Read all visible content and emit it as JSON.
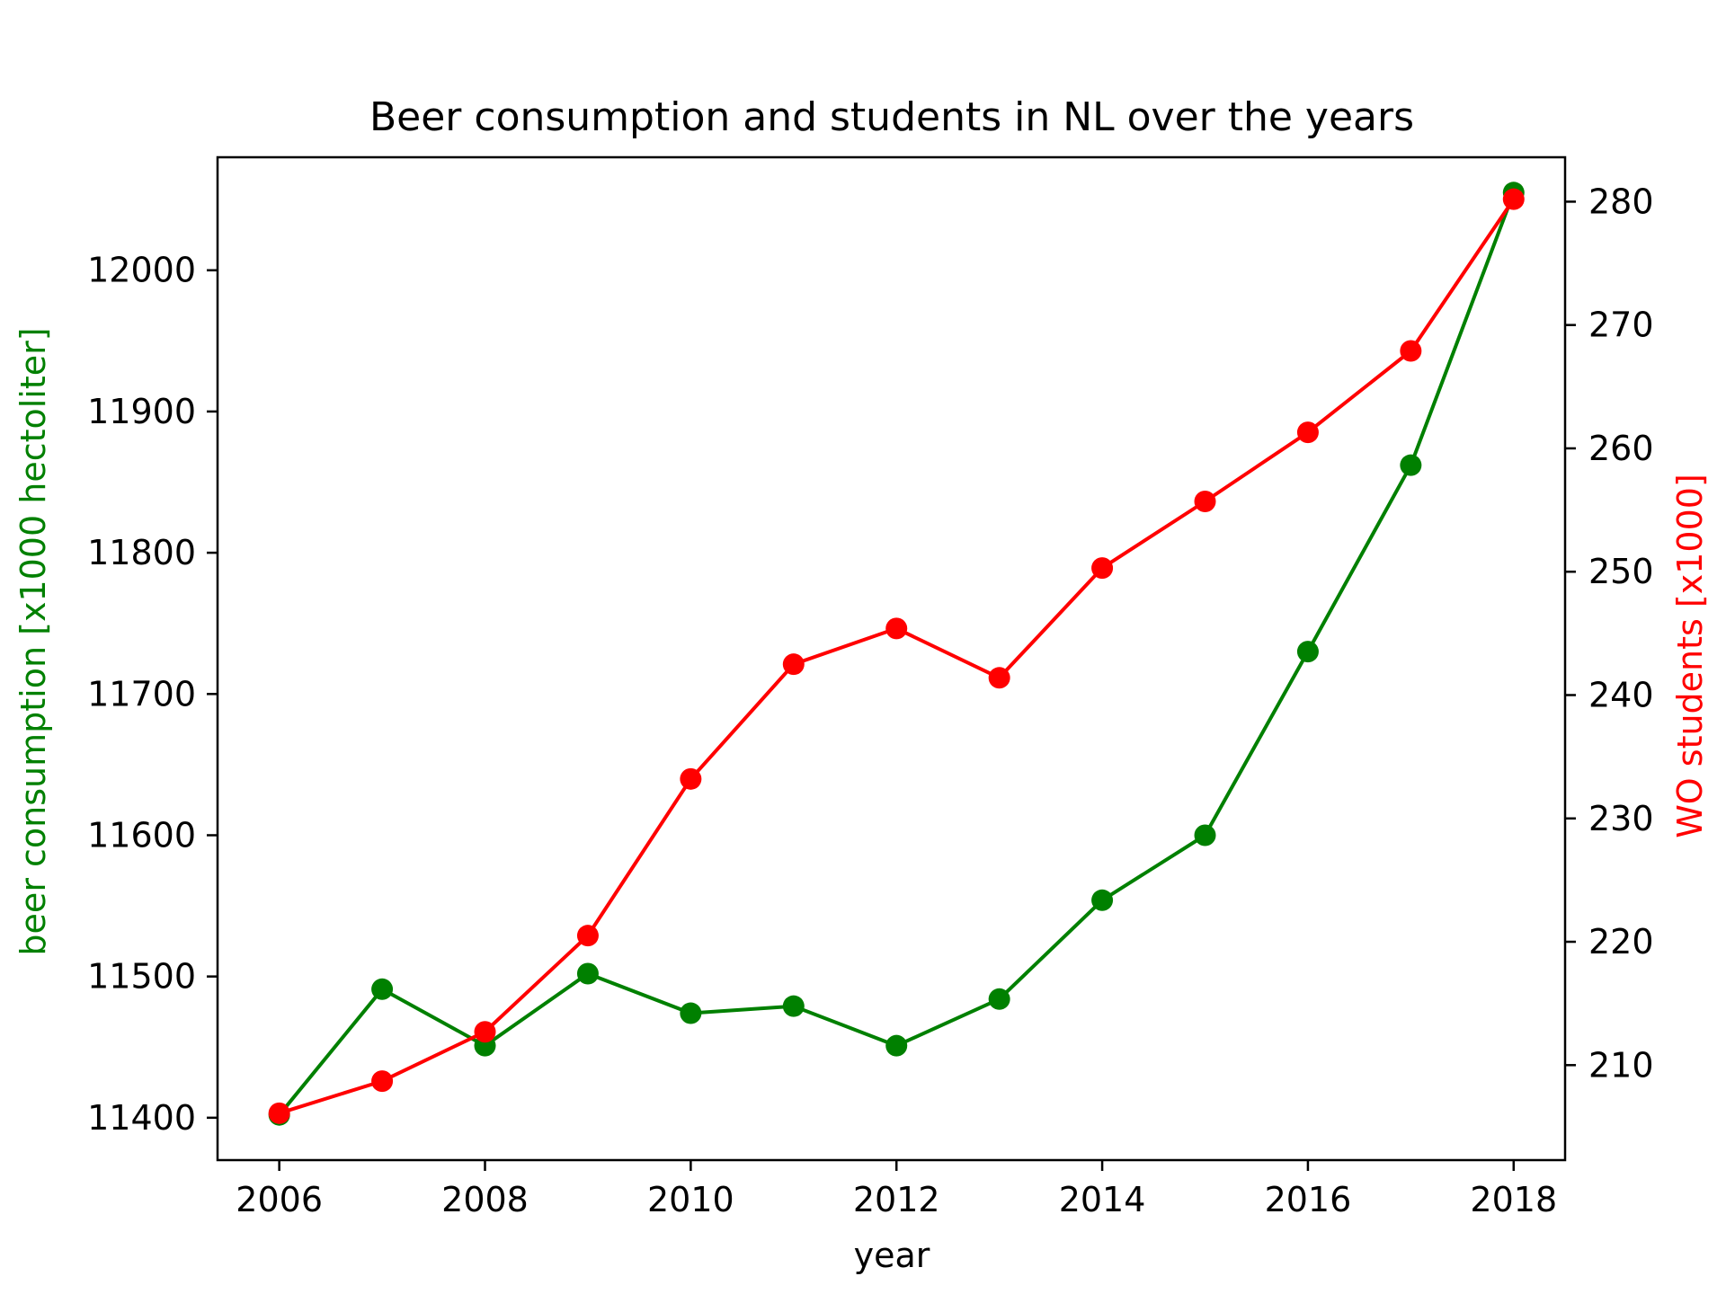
{
  "chart_data": {
    "type": "line",
    "title": "Beer consumption and students in NL over the years",
    "xlabel": "year",
    "ylabel_left": "beer consumption [x1000 hectoliter]",
    "ylabel_right": "WO students [x1000]",
    "x": [
      2006,
      2007,
      2008,
      2009,
      2010,
      2011,
      2012,
      2013,
      2014,
      2015,
      2016,
      2017,
      2018
    ],
    "xlim": [
      2005.4,
      2018.5
    ],
    "xticks": [
      2006,
      2008,
      2010,
      2012,
      2014,
      2016,
      2018
    ],
    "ylim_left": [
      11370,
      12080
    ],
    "yticks_left": [
      11400,
      11500,
      11600,
      11700,
      11800,
      11900,
      12000
    ],
    "ylim_right": [
      202.3,
      283.6
    ],
    "yticks_right": [
      210,
      220,
      230,
      240,
      250,
      260,
      270,
      280
    ],
    "grid": false,
    "series": [
      {
        "axis": "left",
        "color": "#008000",
        "values": [
          11402,
          11491,
          11451,
          11502,
          11474,
          11479,
          11451,
          11484,
          11554,
          11600,
          11730,
          11862,
          12055
        ]
      },
      {
        "axis": "right",
        "color": "#ff0000",
        "values": [
          206.1,
          208.7,
          212.7,
          220.5,
          233.2,
          242.5,
          245.4,
          241.4,
          250.3,
          255.7,
          261.3,
          267.9,
          280.2
        ]
      }
    ]
  }
}
